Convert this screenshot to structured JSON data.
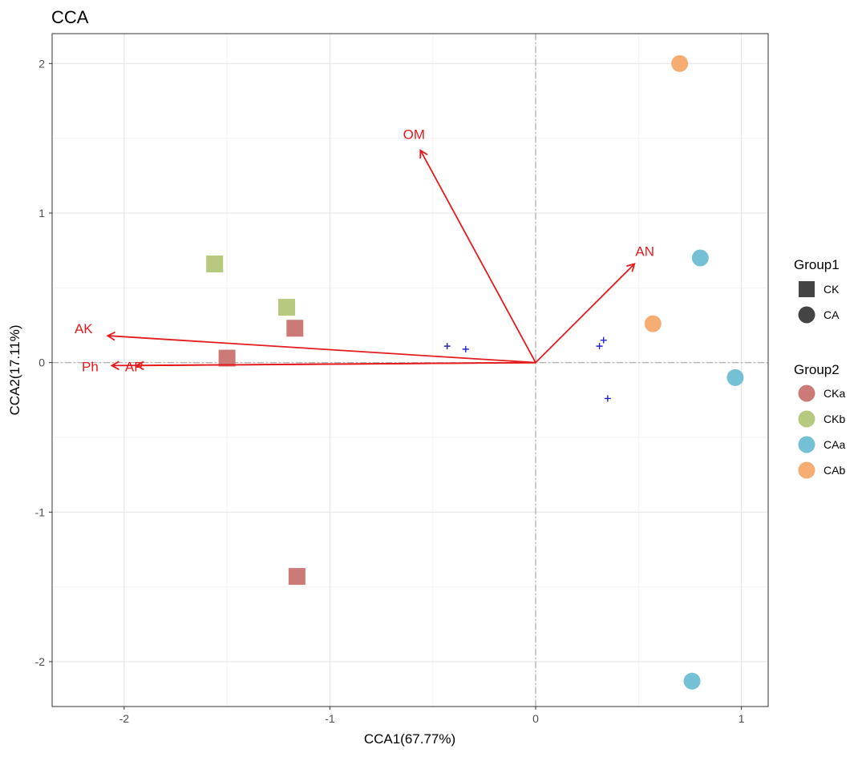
{
  "chart_data": {
    "type": "scatter",
    "title": "CCA",
    "xlabel": "CCA1(67.77%)",
    "ylabel": "CCA2(17.11%)",
    "xlim": [
      -2.35,
      1.13
    ],
    "ylim": [
      -2.3,
      2.2
    ],
    "xticks": [
      -2,
      -1,
      0,
      1
    ],
    "yticks": [
      -2,
      -1,
      0,
      1,
      2
    ],
    "xtick_labels": [
      "-2",
      "-1",
      "0",
      "1"
    ],
    "ytick_labels": [
      "-2",
      "-1",
      "0",
      "1",
      "2"
    ],
    "grid": true,
    "reference_lines": {
      "x": 0,
      "y": 0
    },
    "samples": [
      {
        "group1": "CK",
        "group2": "CKa",
        "x": -1.17,
        "y": 0.23
      },
      {
        "group1": "CK",
        "group2": "CKa",
        "x": -1.5,
        "y": 0.03
      },
      {
        "group1": "CK",
        "group2": "CKa",
        "x": -1.16,
        "y": -1.43
      },
      {
        "group1": "CK",
        "group2": "CKb",
        "x": -1.56,
        "y": 0.66
      },
      {
        "group1": "CK",
        "group2": "CKb",
        "x": -1.21,
        "y": 0.37
      },
      {
        "group1": "CA",
        "group2": "CAa",
        "x": 0.8,
        "y": 0.7
      },
      {
        "group1": "CA",
        "group2": "CAa",
        "x": 0.97,
        "y": -0.1
      },
      {
        "group1": "CA",
        "group2": "CAa",
        "x": 0.76,
        "y": -2.13
      },
      {
        "group1": "CA",
        "group2": "CAb",
        "x": 0.7,
        "y": 2.0
      },
      {
        "group1": "CA",
        "group2": "CAb",
        "x": 0.57,
        "y": 0.26
      }
    ],
    "species_points": [
      {
        "x": -0.43,
        "y": 0.11
      },
      {
        "x": -0.34,
        "y": 0.09
      },
      {
        "x": 0.31,
        "y": 0.11
      },
      {
        "x": 0.33,
        "y": 0.15
      },
      {
        "x": 0.35,
        "y": -0.24
      }
    ],
    "env_arrows": [
      {
        "name": "OM",
        "x": -0.56,
        "y": 1.42
      },
      {
        "name": "AN",
        "x": 0.48,
        "y": 0.66
      },
      {
        "name": "AK",
        "x": -2.08,
        "y": 0.18
      },
      {
        "name": "Ph",
        "x": -2.06,
        "y": -0.02
      },
      {
        "name": "AP",
        "x": -1.94,
        "y": -0.02
      }
    ],
    "legend": {
      "group1": {
        "title": "Group1",
        "items": [
          {
            "label": "CK",
            "shape": "square"
          },
          {
            "label": "CA",
            "shape": "circle"
          }
        ]
      },
      "group2": {
        "title": "Group2",
        "items": [
          {
            "label": "CKa",
            "color": "#cc7a78"
          },
          {
            "label": "CKb",
            "color": "#b5c97f"
          },
          {
            "label": "CAa",
            "color": "#74c0d4"
          },
          {
            "label": "CAb",
            "color": "#f5ad73"
          }
        ]
      },
      "position": "right"
    },
    "colors": {
      "CKa": "#cc7a78",
      "CKb": "#b5c97f",
      "CAa": "#74c0d4",
      "CAb": "#f5ad73",
      "arrow": "#e41a1c",
      "species": "#2222cc",
      "legend_shape": "#444444"
    }
  }
}
